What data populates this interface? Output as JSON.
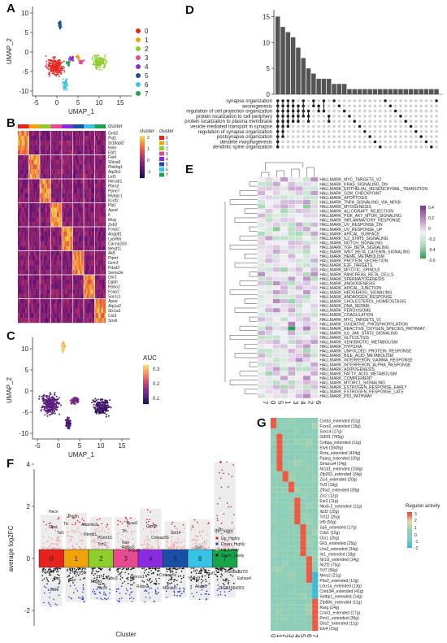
{
  "figure": {
    "panel_labels": [
      "A",
      "B",
      "C",
      "D",
      "E",
      "F",
      "G"
    ]
  },
  "palette": {
    "clusters": [
      "#e8231f",
      "#f0a30a",
      "#8fce2a",
      "#e84a8f",
      "#8a2be2",
      "#1a4fa8",
      "#36c3e6",
      "#1aa44a"
    ]
  },
  "panelA": {
    "xlabel": "UMAP_1",
    "ylabel": "UMAP_2",
    "xticks": [
      "-5",
      "0",
      "5",
      "10",
      "15"
    ],
    "yticks": [
      "-10",
      "-5",
      "0",
      "5",
      "10"
    ],
    "legend": [
      "0",
      "1",
      "2",
      "3",
      "4",
      "5",
      "6",
      "7"
    ]
  },
  "panelB": {
    "annotation_label": "cluster",
    "scale_title": "cluster",
    "scale_ticks": [
      "2",
      "1",
      "0",
      "-1"
    ],
    "legend": [
      "0",
      "1",
      "2",
      "3",
      "4",
      "5",
      "6",
      "7"
    ],
    "genes": [
      "Grid2",
      "Pid2",
      "St18apl2",
      "Reln",
      "Ebf1",
      "Fat4",
      "Shisa6",
      "Plekhg1",
      "Atp2b1",
      "Lef1",
      "Necab1",
      "Pbrn3",
      "Ppne7",
      "Mybpc1",
      "Kcnf2",
      "Plp1",
      "Apod",
      "Il",
      "Mog",
      "Zeb2",
      "Foxp2",
      "Angptl1",
      "Lypd6b",
      "Cacna2d3",
      "Megf11",
      "Ak5",
      "Ptprd",
      "Grm3",
      "Pdzd2",
      "Sema3e",
      "Osr1",
      "Dgkb",
      "Robo2",
      "Foxp2",
      "Sorcs1",
      "Apoe",
      "Atp1a2",
      "Slc1a3",
      "Cst3",
      "Sox6"
    ]
  },
  "panelC": {
    "xlabel": "UMAP_1",
    "ylabel": "UMAP_2",
    "xticks": [
      "-5",
      "0",
      "5",
      "10",
      "15"
    ],
    "yticks": [
      "-10",
      "-5",
      "0",
      "5",
      "10"
    ],
    "scale_title": "AUC",
    "scale_ticks": [
      "0.3",
      "0.2",
      "0.1"
    ]
  },
  "panelD": {
    "yticks": [
      "15",
      "10",
      "5",
      "0"
    ],
    "terms": [
      "synapse organization",
      "axonogenesis",
      "regulation of cell projection organization",
      "protein localization to cell periphery",
      "protein localization to plasma membrane",
      "vesicle-mediated transport in synapse",
      "regulation of synapse organization",
      "postsynapse organization",
      "dendrite morphogenesis",
      "dendritic spine organization"
    ]
  },
  "panelE": {
    "scale_ticks": [
      "0.4",
      "0.2",
      "0",
      "-0.2",
      "-0.4",
      "-0.6"
    ],
    "columns": [
      "7",
      "0",
      "5",
      "1",
      "3",
      "4",
      "2",
      "6"
    ],
    "rows": [
      "HALLMARK_MYC_TARGETS_V2",
      "HALLMARK_KRAS_SIGNALING_DN",
      "HALLMARK_EPITHELIAL_MESENCHYMAL_TRANSITION",
      "HALLMARK_G2M_CHECKPOINT",
      "HALLMARK_APOPTOSIS",
      "HALLMARK_TNFA_SIGNALING_VIA_NFKB",
      "HALLMARK_MYOGENESIS",
      "HALLMARK_ALLOGRAFT_REJECTION",
      "HALLMARK_PI3K_AKT_MTOR_SIGNALING",
      "HALLMARK_INFLAMMATORY_RESPONSE",
      "HALLMARK_UV_RESPONSE_DN",
      "HALLMARK_UV_RESPONSE_UP",
      "HALLMARK_APICAL_SURFACE",
      "HALLMARK_IL2_STAT5_SIGNALING",
      "HALLMARK_NOTCH_SIGNALING",
      "HALLMARK_TGF_BETA_SIGNALING",
      "HALLMARK_WNT_BETA_CATENIN_SIGNALING",
      "HALLMARK_HEME_METABOLISM",
      "HALLMARK_PROTEIN_SECRETION",
      "HALLMARK_E2F_TARGETS",
      "HALLMARK_MITOTIC_SPINDLE",
      "HALLMARK_PANCREAS_BETA_CELLS",
      "HALLMARK_SPERMATOGENESIS",
      "HALLMARK_ANGIOGENESIS",
      "HALLMARK_APICAL_JUNCTION",
      "HALLMARK_HEDGEHOG_SIGNALING",
      "HALLMARK_ANDROGEN_RESPONSE",
      "HALLMARK_CHOLESTEROL_HOMEOSTASIS",
      "HALLMARK_DNA_REPAIR",
      "HALLMARK_PEROXISOME",
      "HALLMARK_COAGULATION",
      "HALLMARK_MYC_TARGETS_V1",
      "HALLMARK_OXIDATIVE_PHOSPHORYLATION",
      "HALLMARK_REACTIVE_OXYGEN_SPECIES_PATHWAY",
      "HALLMARK_IL6_JAK_STAT3_SIGNALING",
      "HALLMARK_GLYCOLYSIS",
      "HALLMARK_XENOBIOTIC_METABOLISM",
      "HALLMARK_HYPOXIA",
      "HALLMARK_UNFOLDED_PROTEIN_RESPONSE",
      "HALLMARK_BILE_ACID_METABOLISM",
      "HALLMARK_INTERFERON_GAMMA_RESPONSE",
      "HALLMARK_INTERFERON_ALPHA_RESPONSE",
      "HALLMARK_ADIPOGENESIS",
      "HALLMARK_FATTY_ACID_METABOLISM",
      "HALLMARK_COMPLEMENT",
      "HALLMARK_MTORC1_SIGNALING",
      "HALLMARK_ESTROGEN_RESPONSE_EARLY",
      "HALLMARK_ESTROGEN_RESPONSE_LATE",
      "HALLMARK_P53_PATHWAY"
    ]
  },
  "panelF": {
    "ylabel": "average log2FC",
    "xlabel": "Cluster",
    "yticks": [
      "4",
      "2",
      "0",
      "-2"
    ],
    "clusters": [
      "0",
      "1",
      "2",
      "3",
      "4",
      "5",
      "6",
      "7"
    ],
    "legend_title": "thr_signi",
    "legend_items": [
      "Up_Highly",
      "Down_Highly",
      "Up_Lowly",
      "Down_Lowly"
    ],
    "top_labels": [
      "Hecn",
      "Ttr",
      "Pmch",
      "Gpvt",
      "Tel1",
      "Adamts2",
      "Tfr",
      "Bcas1",
      "Grm8",
      "Rbmb1",
      "Plzch15",
      "Nov",
      "Pdzd2",
      "Cntnap5b",
      "Slc14",
      "Tcfr2",
      "Robo2",
      "Sp8",
      "Ttr"
    ],
    "bottom_labels": [
      "Nrxin",
      "Tsg",
      "Gpr",
      "Robo2",
      "Ebf1",
      "Tcf7l2",
      "Pdgfd",
      "Htr2c",
      "Sorcs1",
      "Robo2",
      "Cntnap5c",
      "Marchf1",
      "Hacd3",
      "Akap6",
      "RGD1564053",
      "Ephas4",
      "Slc8a2",
      "Tcf7l2",
      "Inof1"
    ]
  },
  "panelG": {
    "scale_title": "Regulon activity",
    "scale_ticks": [
      "3",
      "2",
      "1",
      "0",
      "-1",
      "-2"
    ],
    "columns": [
      "0",
      "1",
      "2",
      "3",
      "4",
      "5",
      "6",
      "7"
    ],
    "rows": [
      "Creb3_extended (52g)",
      "Foxo2_extended (15g)",
      "Sox14 (17g)",
      "Gtf2f1 (785g)",
      "Cebpa_extended (11g)",
      "Etv6 (2849g)",
      "Rora_extended (434g)",
      "Pparg_extended (20g)",
      "Smarca4 (14g)",
      "Nr1d1_extended (158g)",
      "Zfp263_extended (24g)",
      "Zic4_extended (20g)",
      "Tcf3 (19g)",
      "Zfhx2_extended (39g)",
      "Zic2 (12g)",
      "Esr2 (11g)",
      "Nkx6-2_extended (11g)",
      "Ikzf2 (20g)",
      "Tcf12 (26g)",
      "Irf9 (50g)",
      "Sp5_extended (17g)",
      "Cdx1 (15g)",
      "Osr1 (26g)",
      "Gli3_extended (25g)",
      "Lhx2_extended (34g)",
      "Isl1_extended (18g)",
      "Nr1i3_extended (14g)",
      "Nr2f2 (75g)",
      "Tcf7 (56g)",
      "Meis2 (21g)",
      "Pbx2_extended (12g)",
      "Lmx1a_extended (13g)",
      "Creb3l4_extended (41g)",
      "Setbp1_extended (14g)",
      "Zfp866_extended (11g)",
      "Rarg (14g)",
      "Cnot1_extended (17g)",
      "Prrx1_extended (35g)",
      "Glis2_extended (11g)",
      "Etv4 (15g)"
    ]
  }
}
